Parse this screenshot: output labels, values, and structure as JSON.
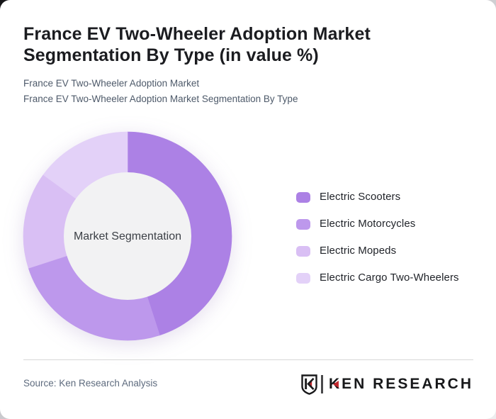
{
  "card": {
    "title": "France EV Two-Wheeler Adoption Market Segmentation By Type (in value %)",
    "subtitles": [
      "France EV Two-Wheeler Adoption Market",
      "France EV Two-Wheeler Adoption Market Segmentation By Type"
    ]
  },
  "chart_data": {
    "type": "pie",
    "subtype": "donut",
    "title": "France EV Two-Wheeler Adoption Market Segmentation By Type (in value %)",
    "center_label": "Market Segmentation",
    "categories": [
      "Electric Scooters",
      "Electric Motorcycles",
      "Electric Mopeds",
      "Electric Cargo Two-Wheelers"
    ],
    "values": [
      45,
      25,
      15,
      15
    ],
    "unit": "%",
    "values_labeled": false,
    "colors": [
      "#AC81E5",
      "#BD98EC",
      "#D9BFF4",
      "#E3D1F8"
    ],
    "inner_circle_color": "#F2F2F3",
    "start_angle_deg": 0,
    "direction": "clockwise",
    "inner_radius_ratio": 0.61,
    "legend_position": "right"
  },
  "footer": {
    "source": "Source: Ken Research Analysis",
    "logo": {
      "text": "KEN RESEARCH",
      "accent_color": "#C1272D"
    }
  }
}
